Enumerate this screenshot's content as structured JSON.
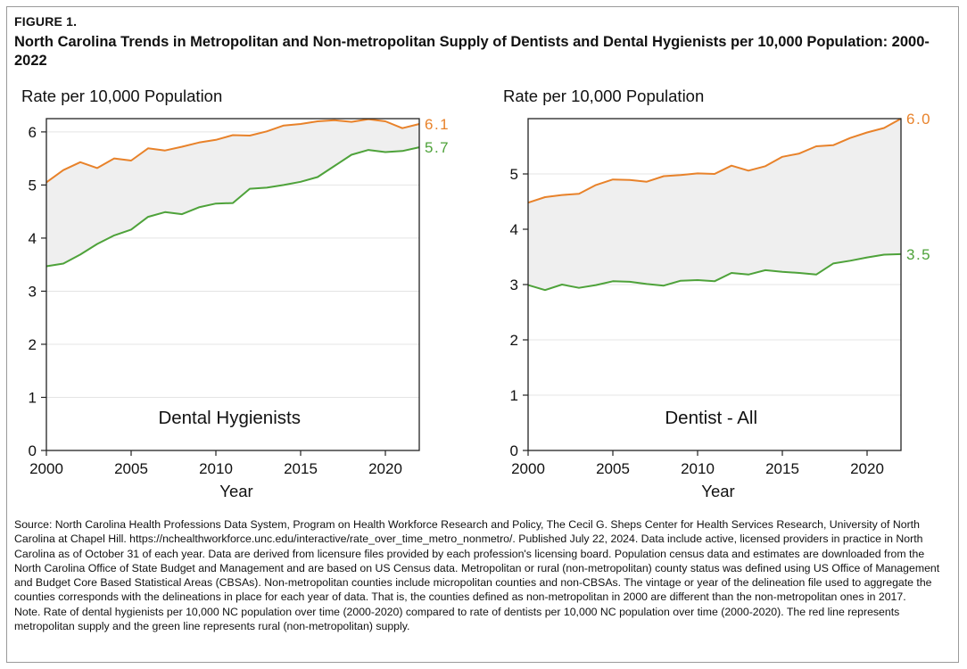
{
  "figure": {
    "label": "FIGURE 1.",
    "title": "North Carolina Trends in Metropolitan and Non-metropolitan Supply of Dentists and Dental Hygienists per 10,000 Population: 2000-2022"
  },
  "colors": {
    "metro": "#e8822a",
    "nonmetro": "#4ea23a",
    "fill": "#efefef",
    "axis": "#222222"
  },
  "chart_data": [
    {
      "type": "area",
      "title": "Dental Hygienists",
      "ylabel": "Rate per 10,000 Population",
      "xlabel": "Year",
      "xlim": [
        2000,
        2022
      ],
      "ylim": [
        0,
        6.25
      ],
      "xticks": [
        2000,
        2005,
        2010,
        2015,
        2020
      ],
      "yticks": [
        0,
        1,
        2,
        3,
        4,
        5,
        6
      ],
      "x": [
        2000,
        2001,
        2002,
        2003,
        2004,
        2005,
        2006,
        2007,
        2008,
        2009,
        2010,
        2011,
        2012,
        2013,
        2014,
        2015,
        2016,
        2017,
        2018,
        2019,
        2020,
        2021,
        2022
      ],
      "series": [
        {
          "name": "Metropolitan",
          "values": [
            5.05,
            5.28,
            5.43,
            5.32,
            5.5,
            5.46,
            5.69,
            5.65,
            5.72,
            5.8,
            5.85,
            5.94,
            5.93,
            6.01,
            6.12,
            6.15,
            6.2,
            6.22,
            6.19,
            6.24,
            6.2,
            6.07,
            6.15
          ],
          "end_label": "6.1"
        },
        {
          "name": "Non-metropolitan",
          "values": [
            3.47,
            3.52,
            3.69,
            3.89,
            4.05,
            4.16,
            4.4,
            4.49,
            4.45,
            4.58,
            4.65,
            4.66,
            4.93,
            4.95,
            5.0,
            5.06,
            5.15,
            5.36,
            5.57,
            5.66,
            5.62,
            5.64,
            5.71
          ],
          "end_label": "5.7"
        }
      ]
    },
    {
      "type": "area",
      "title": "Dentist - All",
      "ylabel": "Rate per 10,000 Population",
      "xlabel": "Year",
      "xlim": [
        2000,
        2022
      ],
      "ylim": [
        0,
        6.0
      ],
      "xticks": [
        2000,
        2005,
        2010,
        2015,
        2020
      ],
      "yticks": [
        0,
        1,
        2,
        3,
        4,
        5
      ],
      "x": [
        2000,
        2001,
        2002,
        2003,
        2004,
        2005,
        2006,
        2007,
        2008,
        2009,
        2010,
        2011,
        2012,
        2013,
        2014,
        2015,
        2016,
        2017,
        2018,
        2019,
        2020,
        2021,
        2022
      ],
      "series": [
        {
          "name": "Metropolitan",
          "values": [
            4.48,
            4.58,
            4.62,
            4.64,
            4.8,
            4.9,
            4.89,
            4.86,
            4.96,
            4.98,
            5.01,
            5.0,
            5.15,
            5.06,
            5.14,
            5.31,
            5.37,
            5.5,
            5.52,
            5.65,
            5.75,
            5.83,
            6.0
          ],
          "end_label": "6.0"
        },
        {
          "name": "Non-metropolitan",
          "values": [
            2.99,
            2.9,
            3.0,
            2.94,
            2.99,
            3.06,
            3.05,
            3.01,
            2.98,
            3.07,
            3.08,
            3.06,
            3.21,
            3.18,
            3.26,
            3.23,
            3.21,
            3.18,
            3.38,
            3.43,
            3.49,
            3.54,
            3.55
          ],
          "end_label": "3.5"
        }
      ]
    }
  ],
  "footnote": {
    "source": "Source: North Carolina Health Professions Data System, Program on Health Workforce Research and Policy, The Cecil G. Sheps Center for Health Services Research, University of North Carolina at Chapel Hill. https://nchealthworkforce.unc.edu/interactive/rate_over_time_metro_nonmetro/. Published July 22, 2024. Data include active, licensed providers in practice in North Carolina as of October 31 of each year. Data are derived from licensure files provided by each profession's licensing board. Population census data and estimates are downloaded from the North Carolina Office of State Budget and Management and are based on US Census data. Metropolitan or rural (non-metropolitan) county status was defined using US Office of Management and Budget Core Based Statistical Areas (CBSAs). Non-metropolitan counties include micropolitan counties and non-CBSAs. The vintage or year of the delineation file used to aggregate the counties corresponds with the delineations in place for each year of data. That is, the counties defined as non-metropolitan in 2000 are different than the non-metropolitan ones in 2017.",
    "note": "Note. Rate of dental hygienists per 10,000 NC population over time (2000-2020) compared to rate of dentists per 10,000 NC population over time (2000-2020). The red line represents metropolitan supply and the green line represents rural (non-metropolitan) supply."
  }
}
